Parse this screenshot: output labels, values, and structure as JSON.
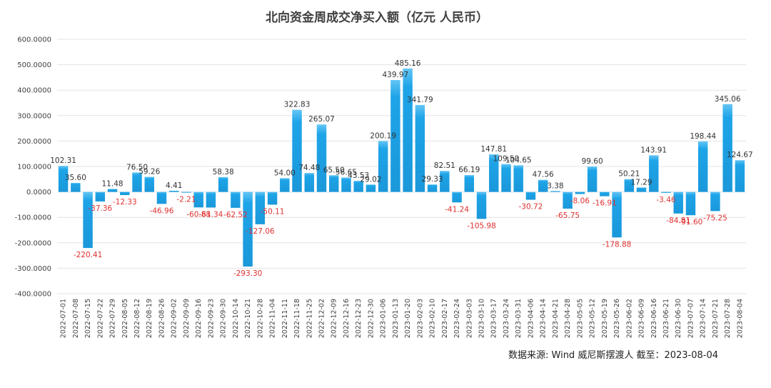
{
  "colors": {
    "bar": "#1ea4e8",
    "bar_top": "#63c5f5",
    "positive_label": "#333333",
    "negative_label": "#e03030",
    "grid": "#e3e3e3"
  },
  "chart_data": {
    "type": "bar",
    "title": "北向资金周成交净买入额（亿元 人民币）",
    "source_note": "数据来源: Wind  威尼斯摆渡人   截至：2023-08-04",
    "ylim": [
      -400,
      600
    ],
    "yticks": [
      "600.0000",
      "500.0000",
      "400.0000",
      "300.0000",
      "200.0000",
      "100.0000",
      "0.0000",
      "-100.0000",
      "-200.0000",
      "-300.0000",
      "-400.0000"
    ],
    "ytick_values": [
      600,
      500,
      400,
      300,
      200,
      100,
      0,
      -100,
      -200,
      -300,
      -400
    ],
    "categories": [
      "2022-07-01",
      "2022-07-08",
      "2022-07-15",
      "2022-07-22",
      "2022-07-29",
      "2022-08-05",
      "2022-08-12",
      "2022-08-19",
      "2022-08-26",
      "2022-09-02",
      "2022-09-09",
      "2022-09-16",
      "2022-09-23",
      "2022-09-30",
      "2022-10-14",
      "2022-10-21",
      "2022-10-28",
      "2022-11-04",
      "2022-11-11",
      "2022-11-18",
      "2022-11-25",
      "2022-12-02",
      "2022-12-09",
      "2022-12-16",
      "2022-12-23",
      "2022-12-30",
      "2023-01-06",
      "2023-01-13",
      "2023-01-20",
      "2023-02-03",
      "2023-02-10",
      "2023-02-17",
      "2023-02-24",
      "2023-03-03",
      "2023-03-10",
      "2023-03-17",
      "2023-03-24",
      "2023-03-31",
      "2023-04-06",
      "2023-04-14",
      "2023-04-21",
      "2023-04-28",
      "2023-05-05",
      "2023-05-12",
      "2023-05-19",
      "2023-05-26",
      "2023-06-02",
      "2023-06-09",
      "2023-06-16",
      "2023-06-21",
      "2023-06-30",
      "2023-07-07",
      "2023-07-14",
      "2023-07-21",
      "2023-07-28",
      "2023-08-04"
    ],
    "values": [
      102.31,
      35.6,
      -220.41,
      -37.36,
      11.48,
      -12.33,
      76.5,
      59.26,
      -46.96,
      4.41,
      -2.21,
      -60.88,
      -61.34,
      58.38,
      -62.52,
      -293.3,
      -127.06,
      -50.11,
      54.0,
      322.83,
      74.48,
      265.07,
      65.5,
      56.65,
      43.53,
      29.02,
      200.19,
      439.97,
      485.16,
      341.79,
      29.33,
      82.51,
      -41.24,
      66.19,
      -105.98,
      147.81,
      109.5,
      104.65,
      -30.72,
      47.56,
      3.38,
      -65.75,
      -8.06,
      99.6,
      -16.91,
      -178.88,
      50.21,
      17.29,
      143.91,
      -3.46,
      -84.81,
      -91.6,
      198.44,
      -75.25,
      345.06,
      124.67
    ],
    "labels": [
      "102.31",
      "35.60",
      "-220.41",
      "-37.36",
      "11.48",
      "-12.33",
      "76.50",
      "59.26",
      "-46.96",
      "4.41",
      "-2.21",
      "-60.88",
      "-61.34",
      "58.38",
      "-62.52",
      "-293.30",
      "-127.06",
      "-50.11",
      "54.00",
      "322.83",
      "74.48",
      "265.07",
      "65.50",
      "56.65",
      "43.53",
      "29.02",
      "200.19",
      "439.97",
      "485.16",
      "341.79",
      "29.33",
      "82.51",
      "-41.24",
      "66.19",
      "-105.98",
      "147.81",
      "109.50",
      "104.65",
      "-30.72",
      "47.56",
      "3.38",
      "-65.75",
      "-8.06",
      "99.60",
      "-16.91",
      "-178.88",
      "50.21",
      "17.29",
      "143.91",
      "-3.46",
      "-84.81",
      "-91.60",
      "198.44",
      "-75.25",
      "345.06",
      "124.67"
    ],
    "xlabel": "",
    "ylabel": "",
    "grid": true
  }
}
